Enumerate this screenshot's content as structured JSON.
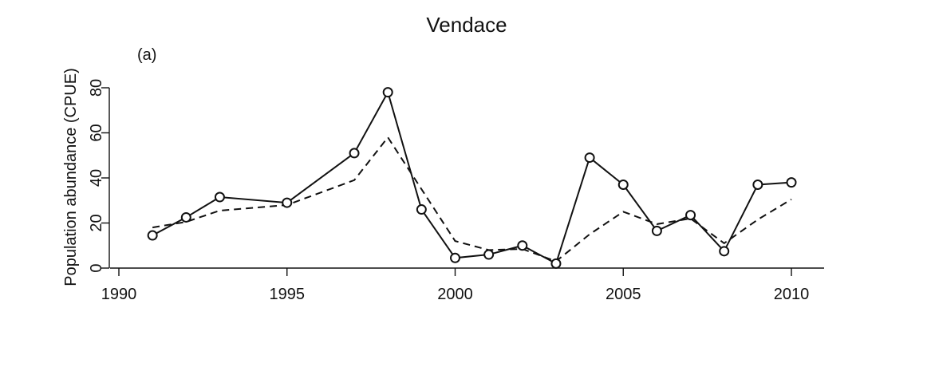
{
  "chart_data": {
    "type": "line",
    "title": "Vendace",
    "panel_label": "(a)",
    "xlabel": "",
    "ylabel": "Population abundance (CPUE)",
    "xlim": [
      1990,
      2010
    ],
    "ylim": [
      0,
      80
    ],
    "x_ticks": [
      1990,
      1995,
      2000,
      2005,
      2010
    ],
    "y_ticks": [
      0,
      20,
      40,
      60,
      80
    ],
    "grid": false,
    "series": [
      {
        "style": "solid-with-circles",
        "x": [
          1991,
          1992,
          1993,
          1995,
          1997,
          1998,
          1999,
          2000,
          2001,
          2002,
          2003,
          2004,
          2005,
          2006,
          2007,
          2008,
          2009,
          2010
        ],
        "y": [
          14.5,
          22.5,
          31.5,
          29,
          51,
          78,
          26,
          4.5,
          6,
          10,
          2,
          49,
          37,
          16.5,
          23.5,
          7.5,
          37,
          38
        ]
      },
      {
        "style": "dashed",
        "x": [
          1991,
          1992,
          1993,
          1995,
          1997,
          1998,
          1999,
          2000,
          2001,
          2002,
          2003,
          2004,
          2005,
          2006,
          2007,
          2008,
          2009,
          2010
        ],
        "y": [
          18,
          20.5,
          25.5,
          28,
          39,
          58,
          35,
          12,
          8,
          8.5,
          3,
          15,
          25,
          19.5,
          22,
          11,
          21.5,
          30.5
        ]
      }
    ]
  }
}
